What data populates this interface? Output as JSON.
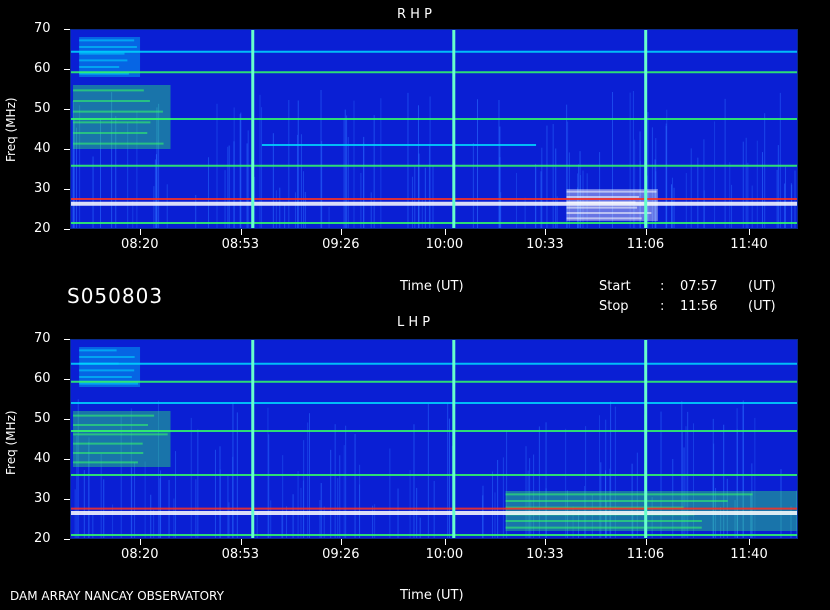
{
  "footer": {
    "left": "DAM ARRAY   NANCAY OBSERVATORY",
    "time_label": "Time (UT)"
  },
  "middle": {
    "code": "S050803",
    "time_label": "Time (UT)",
    "start_label": "Start",
    "stop_label": "Stop",
    "colon": ":",
    "start_value": "07:57",
    "stop_value": "11:56",
    "unit": "(UT)"
  },
  "colors": {
    "background": "#0a1fd4",
    "band_hot": "#ffffff",
    "band_warm": "#ff3020",
    "band_mid": "#33ff66",
    "band_cool": "#00d8ff",
    "marker": "#66ffcc"
  },
  "chart_data": [
    {
      "type": "heatmap",
      "title": "R H P",
      "ylabel": "Freq (MHz)",
      "xlabel": "Time (UT)",
      "ylim": [
        20,
        70
      ],
      "y_ticks": [
        20,
        30,
        40,
        50,
        60,
        70
      ],
      "x_range_minutes": [
        "07:57",
        "11:56"
      ],
      "x_ticks": [
        "08:20",
        "08:53",
        "09:26",
        "10:00",
        "10:33",
        "11:06",
        "11:40"
      ],
      "vertical_markers": [
        "08:57",
        "10:03",
        "11:06"
      ],
      "bands": [
        {
          "freq": 26.3,
          "t0": "07:57",
          "t1": "11:56",
          "intensity": "hot"
        },
        {
          "freq": 27.5,
          "t0": "07:57",
          "t1": "11:56",
          "intensity": "warm"
        },
        {
          "freq": 21.5,
          "t0": "07:57",
          "t1": "11:56",
          "intensity": "mid"
        },
        {
          "freq": 35.8,
          "t0": "07:57",
          "t1": "11:56",
          "intensity": "mid"
        },
        {
          "freq": 47.5,
          "t0": "07:57",
          "t1": "11:56",
          "intensity": "mid"
        },
        {
          "freq": 59.2,
          "t0": "07:57",
          "t1": "11:56",
          "intensity": "mid"
        },
        {
          "freq": 64.3,
          "t0": "07:57",
          "t1": "11:56",
          "intensity": "cool"
        },
        {
          "freq": 41.0,
          "t0": "09:00",
          "t1": "10:30",
          "intensity": "cool"
        }
      ],
      "bursts": [
        {
          "t0": "08:00",
          "t1": "08:20",
          "f0": 58,
          "f1": 68,
          "intensity": "cool"
        },
        {
          "t0": "07:58",
          "t1": "08:30",
          "f0": 40,
          "f1": 56,
          "intensity": "mid"
        },
        {
          "t0": "10:40",
          "t1": "11:10",
          "f0": 22,
          "f1": 30,
          "intensity": "hot"
        }
      ]
    },
    {
      "type": "heatmap",
      "title": "L H P",
      "ylabel": "Freq (MHz)",
      "xlabel": "Time (UT)",
      "ylim": [
        20,
        70
      ],
      "y_ticks": [
        20,
        30,
        40,
        50,
        60,
        70
      ],
      "x_range_minutes": [
        "07:57",
        "11:56"
      ],
      "x_ticks": [
        "08:20",
        "08:53",
        "09:26",
        "10:00",
        "10:33",
        "11:06",
        "11:40"
      ],
      "vertical_markers": [
        "08:57",
        "10:03",
        "11:06"
      ],
      "bands": [
        {
          "freq": 26.5,
          "t0": "07:57",
          "t1": "11:56",
          "intensity": "hot"
        },
        {
          "freq": 27.6,
          "t0": "07:57",
          "t1": "11:56",
          "intensity": "warm"
        },
        {
          "freq": 21.0,
          "t0": "07:57",
          "t1": "11:56",
          "intensity": "mid"
        },
        {
          "freq": 36.0,
          "t0": "07:57",
          "t1": "11:56",
          "intensity": "mid"
        },
        {
          "freq": 47.0,
          "t0": "07:57",
          "t1": "11:56",
          "intensity": "mid"
        },
        {
          "freq": 54.0,
          "t0": "07:57",
          "t1": "11:56",
          "intensity": "cool"
        },
        {
          "freq": 59.3,
          "t0": "07:57",
          "t1": "11:56",
          "intensity": "mid"
        },
        {
          "freq": 63.8,
          "t0": "07:57",
          "t1": "11:56",
          "intensity": "cool"
        }
      ],
      "bursts": [
        {
          "t0": "07:58",
          "t1": "08:30",
          "f0": 38,
          "f1": 52,
          "intensity": "mid"
        },
        {
          "t0": "08:00",
          "t1": "08:20",
          "f0": 58,
          "f1": 68,
          "intensity": "cool"
        },
        {
          "t0": "10:20",
          "t1": "11:56",
          "f0": 22,
          "f1": 32,
          "intensity": "mid"
        }
      ]
    }
  ]
}
